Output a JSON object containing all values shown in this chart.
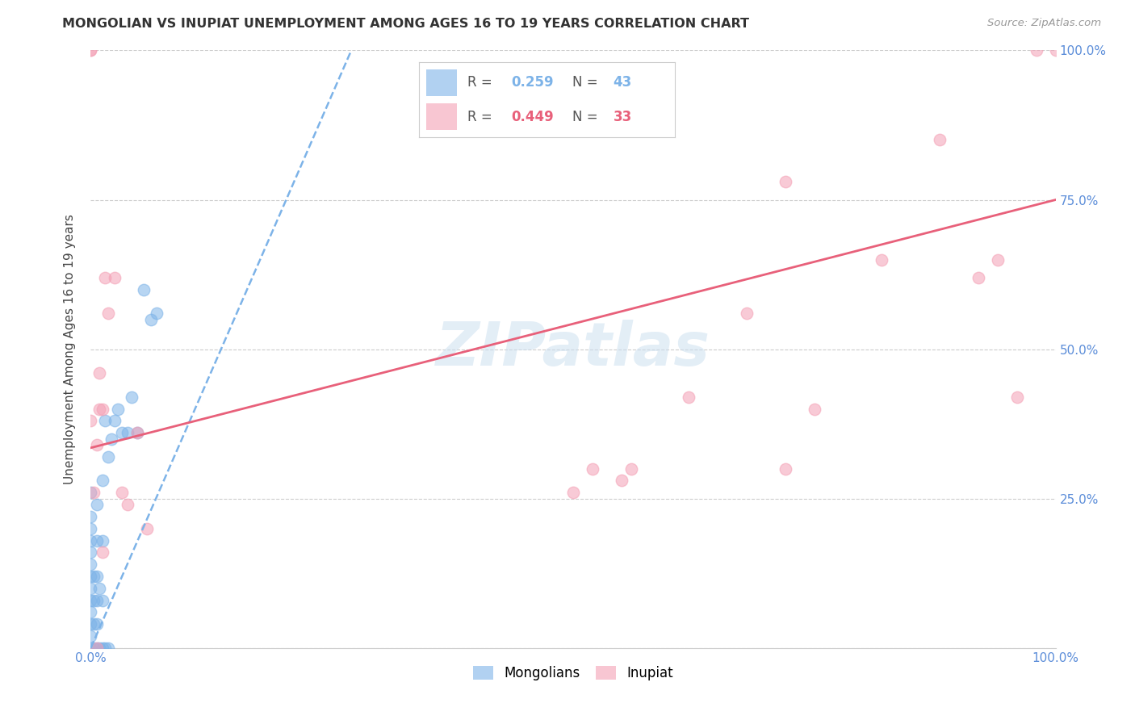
{
  "title": "MONGOLIAN VS INUPIAT UNEMPLOYMENT AMONG AGES 16 TO 19 YEARS CORRELATION CHART",
  "source": "Source: ZipAtlas.com",
  "ylabel": "Unemployment Among Ages 16 to 19 years",
  "xlim": [
    0.0,
    1.0
  ],
  "ylim": [
    0.0,
    1.0
  ],
  "xticks": [
    0.0,
    0.25,
    0.5,
    0.75,
    1.0
  ],
  "yticks": [
    0.0,
    0.25,
    0.5,
    0.75,
    1.0
  ],
  "xticklabels": [
    "0.0%",
    "",
    "",
    "",
    "100.0%"
  ],
  "yticklabels_right": [
    "",
    "25.0%",
    "50.0%",
    "75.0%",
    "100.0%"
  ],
  "mongolian_color": "#7db3e8",
  "inupiat_color": "#f4a0b5",
  "tick_label_color": "#5b8dd9",
  "mongolian_R": 0.259,
  "mongolian_N": 43,
  "inupiat_R": 0.449,
  "inupiat_N": 33,
  "watermark": "ZIPatlas",
  "background_color": "#ffffff",
  "grid_color": "#cccccc",
  "mongolian_points_x": [
    0.0,
    0.0,
    0.0,
    0.0,
    0.0,
    0.0,
    0.0,
    0.0,
    0.0,
    0.0,
    0.0,
    0.0,
    0.0,
    0.003,
    0.003,
    0.003,
    0.003,
    0.006,
    0.006,
    0.006,
    0.006,
    0.006,
    0.006,
    0.009,
    0.009,
    0.012,
    0.012,
    0.012,
    0.012,
    0.015,
    0.015,
    0.018,
    0.018,
    0.021,
    0.025,
    0.028,
    0.032,
    0.038,
    0.042,
    0.048,
    0.055,
    0.062,
    0.068
  ],
  "mongolian_points_y": [
    0.0,
    0.02,
    0.04,
    0.06,
    0.08,
    0.1,
    0.12,
    0.14,
    0.16,
    0.18,
    0.2,
    0.22,
    0.26,
    0.0,
    0.04,
    0.08,
    0.12,
    0.0,
    0.04,
    0.08,
    0.12,
    0.18,
    0.24,
    0.0,
    0.1,
    0.0,
    0.08,
    0.18,
    0.28,
    0.0,
    0.38,
    0.0,
    0.32,
    0.35,
    0.38,
    0.4,
    0.36,
    0.36,
    0.42,
    0.36,
    0.6,
    0.55,
    0.56
  ],
  "inupiat_points_x": [
    0.0,
    0.0,
    0.0,
    0.003,
    0.006,
    0.006,
    0.009,
    0.009,
    0.012,
    0.012,
    0.015,
    0.018,
    0.025,
    0.032,
    0.038,
    0.048,
    0.058,
    0.5,
    0.52,
    0.55,
    0.56,
    0.62,
    0.68,
    0.72,
    0.72,
    0.75,
    0.82,
    0.88,
    0.92,
    0.94,
    0.96,
    0.98,
    1.0
  ],
  "inupiat_points_y": [
    1.0,
    1.0,
    0.38,
    0.26,
    0.34,
    0.0,
    0.4,
    0.46,
    0.4,
    0.16,
    0.62,
    0.56,
    0.62,
    0.26,
    0.24,
    0.36,
    0.2,
    0.26,
    0.3,
    0.28,
    0.3,
    0.42,
    0.56,
    0.78,
    0.3,
    0.4,
    0.65,
    0.85,
    0.62,
    0.65,
    0.42,
    1.0,
    1.0
  ],
  "mongolian_trend_x0": 0.0,
  "mongolian_trend_y0": 0.0,
  "mongolian_trend_x1": 0.27,
  "mongolian_trend_y1": 1.0,
  "inupiat_trend_x0": 0.0,
  "inupiat_trend_y0": 0.335,
  "inupiat_trend_x1": 1.0,
  "inupiat_trend_y1": 0.75
}
